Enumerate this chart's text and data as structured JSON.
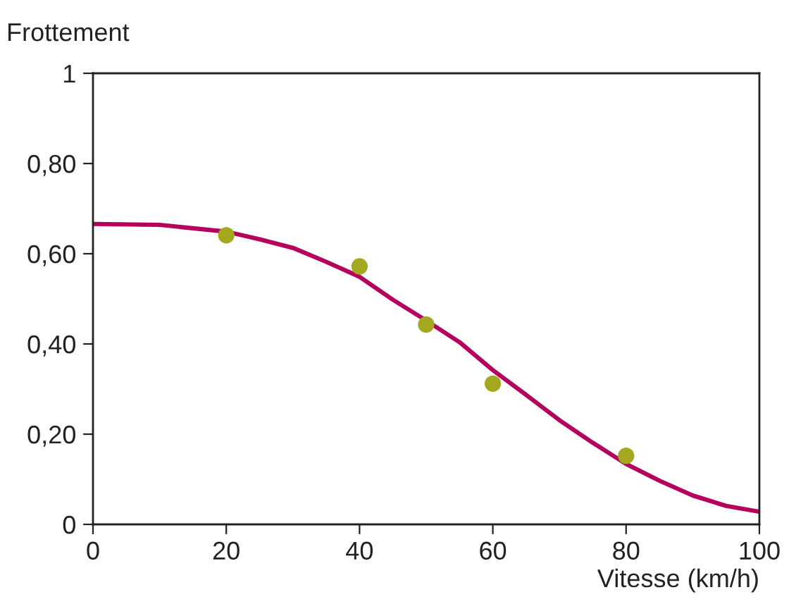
{
  "chart_data": {
    "type": "scatter",
    "xlabel": "Vitesse (km/h)",
    "ylabel": "Frottement",
    "xlim": [
      0,
      100
    ],
    "xticks": [
      0,
      20,
      40,
      60,
      80,
      100
    ],
    "ylim": [
      0,
      1
    ],
    "yticks": [
      {
        "value": 0,
        "label": "0"
      },
      {
        "value": 0.2,
        "label": "0,20"
      },
      {
        "value": 0.4,
        "label": "0,40"
      },
      {
        "value": 0.6,
        "label": "0,60"
      },
      {
        "value": 0.8,
        "label": "0,80"
      },
      {
        "value": 1,
        "label": "1"
      }
    ],
    "grid": false,
    "legend": false,
    "series": [
      {
        "type": "line",
        "color": "#b5005e",
        "marker": "none",
        "line_style": "solid",
        "x": [
          0,
          10,
          20,
          25,
          30,
          35,
          40,
          45,
          50,
          55,
          60,
          65,
          70,
          75,
          80,
          85,
          90,
          95,
          100
        ],
        "values": [
          0.666,
          0.664,
          0.649,
          0.632,
          0.613,
          0.582,
          0.549,
          0.498,
          0.452,
          0.404,
          0.342,
          0.287,
          0.231,
          0.181,
          0.134,
          0.097,
          0.064,
          0.041,
          0.028
        ]
      },
      {
        "color": "#a3a81e",
        "marker": "circle",
        "x": [
          20,
          40,
          50,
          60,
          80
        ],
        "values": [
          0.641,
          0.572,
          0.443,
          0.312,
          0.152
        ]
      }
    ]
  }
}
